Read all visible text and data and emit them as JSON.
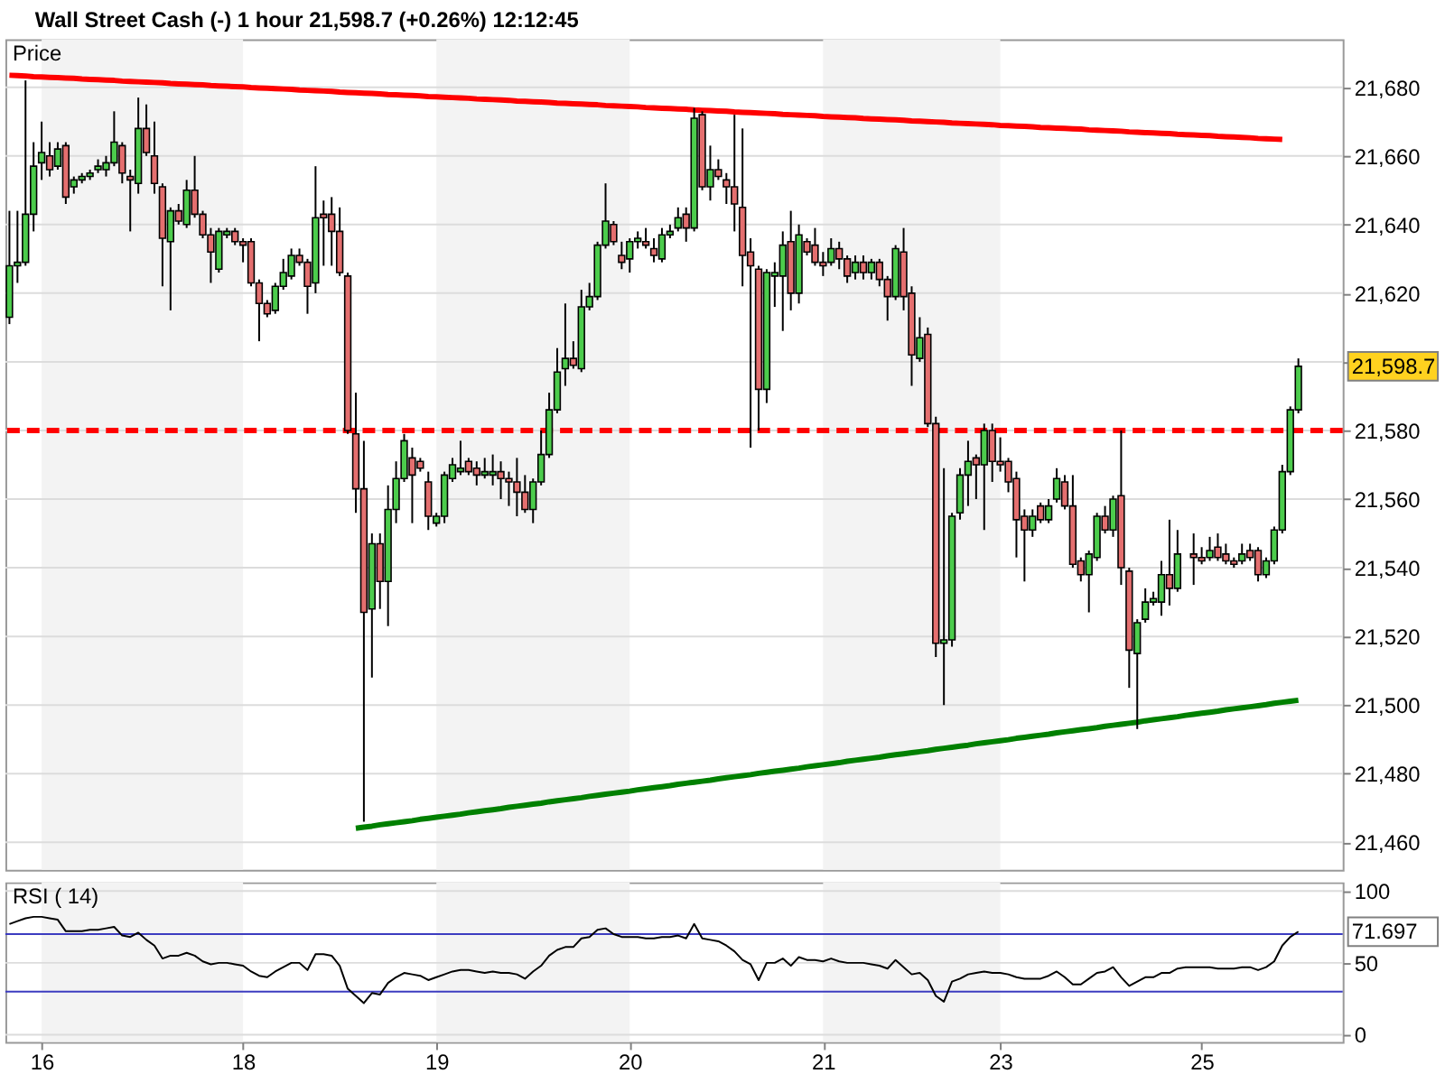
{
  "chart_data": [
    {
      "type": "candlestick",
      "title": "Wall Street Cash (-) 1 hour 21,598.7 (+0.26%) 12:12:45",
      "ylabel": "Price",
      "categories": [
        null,
        null,
        null,
        null,
        "16",
        null,
        null,
        null,
        null,
        null,
        null,
        null,
        null,
        null,
        null,
        null,
        null,
        null,
        null,
        null,
        null,
        null,
        null,
        null,
        null,
        null,
        null,
        null,
        null,
        "18",
        null,
        null,
        null,
        null,
        null,
        null,
        null,
        null,
        null,
        null,
        null,
        null,
        null,
        null,
        null,
        null,
        null,
        null,
        null,
        null,
        null,
        null,
        null,
        "19",
        null,
        null,
        null,
        null,
        null,
        null,
        null,
        null,
        null,
        null,
        null,
        null,
        null,
        null,
        null,
        null,
        null,
        null,
        null,
        null,
        null,
        null,
        null,
        "20",
        null,
        null,
        null,
        null,
        null,
        null,
        null,
        null,
        null,
        null,
        null,
        null,
        null,
        null,
        null,
        null,
        null,
        null,
        null,
        null,
        null,
        null,
        null,
        "21",
        null,
        null,
        null,
        null,
        null,
        null,
        null,
        null,
        null,
        null,
        null,
        null,
        null,
        null,
        null,
        null,
        null,
        null,
        null,
        null,
        null,
        "23",
        null,
        null,
        null,
        null,
        null,
        null,
        null,
        null,
        null,
        null,
        null,
        null,
        null,
        null,
        null,
        null,
        null,
        null,
        null,
        null,
        null,
        null,
        null,
        null,
        "25",
        null,
        null,
        null,
        null,
        null,
        null,
        null,
        null,
        null,
        null,
        null,
        null,
        null,
        null,
        null,
        null,
        null
      ],
      "ohlc": [
        [
          21613,
          21644,
          21611,
          21628
        ],
        [
          21628,
          21644,
          21623,
          21629
        ],
        [
          21629,
          21682,
          21628,
          21643
        ],
        [
          21643,
          21664,
          21638,
          21657
        ],
        [
          21658,
          21670,
          21653,
          21661
        ],
        [
          21660,
          21664,
          21654,
          21656
        ],
        [
          21657,
          21664,
          21656,
          21662
        ],
        [
          21663,
          21664,
          21646,
          21648
        ],
        [
          21651,
          21654,
          21649,
          21653
        ],
        [
          21653,
          21655,
          21652,
          21654
        ],
        [
          21654,
          21656,
          21653,
          21655
        ],
        [
          21656,
          21659,
          21655,
          21657
        ],
        [
          21656,
          21660,
          21654,
          21658
        ],
        [
          21658,
          21673,
          21657,
          21664
        ],
        [
          21663,
          21664,
          21652,
          21655
        ],
        [
          21654,
          21656,
          21638,
          21653
        ],
        [
          21652,
          21677,
          21649,
          21668
        ],
        [
          21668,
          21675,
          21660,
          21661
        ],
        [
          21660,
          21670,
          21649,
          21652
        ],
        [
          21651,
          21652,
          21622,
          21636
        ],
        [
          21635,
          21645,
          21615,
          21644
        ],
        [
          21644,
          21646,
          21640,
          21641
        ],
        [
          21640,
          21653,
          21639,
          21650
        ],
        [
          21650,
          21660,
          21642,
          21643
        ],
        [
          21643,
          21644,
          21636,
          21637
        ],
        [
          21637,
          21639,
          21623,
          21632
        ],
        [
          21627,
          21639,
          21626,
          21638
        ],
        [
          21637,
          21639,
          21636,
          21638
        ],
        [
          21638,
          21639,
          21634,
          21635
        ],
        [
          21635,
          21636,
          21629,
          21634
        ],
        [
          21635,
          21636,
          21622,
          21623
        ],
        [
          21623,
          21624,
          21606,
          21617
        ],
        [
          21617,
          21618,
          21613,
          21614
        ],
        [
          21615,
          21623,
          21614,
          21622
        ],
        [
          21622,
          21630,
          21621,
          21626
        ],
        [
          21625,
          21633,
          21624,
          21631
        ],
        [
          21631,
          21633,
          21628,
          21629
        ],
        [
          21629,
          21630,
          21614,
          21622
        ],
        [
          21623,
          21657,
          21620,
          21642
        ],
        [
          21643,
          21647,
          21628,
          21642
        ],
        [
          21643,
          21648,
          21628,
          21638
        ],
        [
          21638,
          21645,
          21625,
          21626
        ],
        [
          21625,
          21626,
          21579,
          21580
        ],
        [
          21579,
          21591,
          21556,
          21563
        ],
        [
          21563,
          21577,
          21466,
          21527
        ],
        [
          21528,
          21550,
          21508,
          21547
        ],
        [
          21547,
          21550,
          21528,
          21536
        ],
        [
          21536,
          21564,
          21523,
          21557
        ],
        [
          21557,
          21571,
          21553,
          21566
        ],
        [
          21566,
          21579,
          21565,
          21577
        ],
        [
          21572,
          21575,
          21553,
          21567
        ],
        [
          21571,
          21572,
          21568,
          21569
        ],
        [
          21565,
          21568,
          21551,
          21555
        ],
        [
          21553,
          21556,
          21552,
          21555
        ],
        [
          21555,
          21568,
          21553,
          21567
        ],
        [
          21566,
          21572,
          21565,
          21570
        ],
        [
          21568,
          21577,
          21567,
          21569
        ],
        [
          21571,
          21572,
          21567,
          21568
        ],
        [
          21569,
          21571,
          21564,
          21567
        ],
        [
          21567,
          21572,
          21566,
          21568
        ],
        [
          21567,
          21573,
          21564,
          21568
        ],
        [
          21568,
          21571,
          21560,
          21566
        ],
        [
          21566,
          21568,
          21558,
          21565
        ],
        [
          21565,
          21572,
          21555,
          21562
        ],
        [
          21562,
          21567,
          21556,
          21557
        ],
        [
          21557,
          21566,
          21553,
          21565
        ],
        [
          21565,
          21580,
          21564,
          21573
        ],
        [
          21573,
          21591,
          21572,
          21586
        ],
        [
          21586,
          21604,
          21585,
          21597
        ],
        [
          21598,
          21617,
          21593,
          21601
        ],
        [
          21601,
          21606,
          21598,
          21599
        ],
        [
          21598,
          21621,
          21597,
          21616
        ],
        [
          21616,
          21623,
          21615,
          21619
        ],
        [
          21619,
          21635,
          21618,
          21634
        ],
        [
          21634,
          21652,
          21633,
          21641
        ],
        [
          21640,
          21641,
          21634,
          21635
        ],
        [
          21631,
          21635,
          21627,
          21629
        ],
        [
          21630,
          21636,
          21626,
          21635
        ],
        [
          21635,
          21638,
          21633,
          21636
        ],
        [
          21635,
          21639,
          21633,
          21634
        ],
        [
          21633,
          21636,
          21629,
          21631
        ],
        [
          21630,
          21639,
          21629,
          21637
        ],
        [
          21637,
          21640,
          21636,
          21638
        ],
        [
          21639,
          21645,
          21638,
          21642
        ],
        [
          21643,
          21645,
          21635,
          21639
        ],
        [
          21639,
          21674,
          21638,
          21671
        ],
        [
          21672,
          21673,
          21650,
          21651
        ],
        [
          21651,
          21663,
          21647,
          21656
        ],
        [
          21656,
          21659,
          21653,
          21654
        ],
        [
          21653,
          21655,
          21646,
          21651
        ],
        [
          21651,
          21672,
          21638,
          21646
        ],
        [
          21645,
          21668,
          21622,
          21631
        ],
        [
          21632,
          21636,
          21575,
          21628
        ],
        [
          21627,
          21628,
          21580,
          21592
        ],
        [
          21592,
          21627,
          21588,
          21626
        ],
        [
          21625,
          21629,
          21616,
          21626
        ],
        [
          21625,
          21638,
          21609,
          21634
        ],
        [
          21635,
          21644,
          21615,
          21620
        ],
        [
          21620,
          21640,
          21617,
          21637
        ],
        [
          21635,
          21636,
          21631,
          21632
        ],
        [
          21634,
          21639,
          21628,
          21629
        ],
        [
          21629,
          21632,
          21625,
          21628
        ],
        [
          21629,
          21636,
          21628,
          21633
        ],
        [
          21633,
          21635,
          21627,
          21630
        ],
        [
          21630,
          21631,
          21623,
          21625
        ],
        [
          21626,
          21631,
          21624,
          21629
        ],
        [
          21629,
          21631,
          21624,
          21626
        ],
        [
          21626,
          21630,
          21624,
          21629
        ],
        [
          21629,
          21630,
          21622,
          21624
        ],
        [
          21624,
          21625,
          21612,
          21619
        ],
        [
          21619,
          21634,
          21618,
          21633
        ],
        [
          21632,
          21639,
          21615,
          21619
        ],
        [
          21620,
          21622,
          21593,
          21602
        ],
        [
          21601,
          21613,
          21600,
          21607
        ],
        [
          21608,
          21610,
          21581,
          21582
        ],
        [
          21582,
          21584,
          21514,
          21518
        ],
        [
          21518,
          21569,
          21500,
          21519
        ],
        [
          21519,
          21556,
          21517,
          21555
        ],
        [
          21556,
          21569,
          21554,
          21567
        ],
        [
          21567,
          21577,
          21558,
          21571
        ],
        [
          21572,
          21573,
          21560,
          21570
        ],
        [
          21570,
          21582,
          21551,
          21580
        ],
        [
          21580,
          21582,
          21565,
          21571
        ],
        [
          21571,
          21578,
          21568,
          21570
        ],
        [
          21571,
          21572,
          21562,
          21565
        ],
        [
          21566,
          21568,
          21543,
          21554
        ],
        [
          21555,
          21557,
          21536,
          21551
        ],
        [
          21551,
          21557,
          21549,
          21555
        ],
        [
          21558,
          21559,
          21553,
          21554
        ],
        [
          21554,
          21560,
          21553,
          21558
        ],
        [
          21560,
          21569,
          21559,
          21566
        ],
        [
          21565,
          21567,
          21557,
          21558
        ],
        [
          21558,
          21567,
          21540,
          21541
        ],
        [
          21542,
          21543,
          21536,
          21538
        ],
        [
          21538,
          21545,
          21527,
          21544
        ],
        [
          21543,
          21556,
          21542,
          21555
        ],
        [
          21555,
          21558,
          21550,
          21551
        ],
        [
          21551,
          21561,
          21549,
          21560
        ],
        [
          21561,
          21580,
          21535,
          21540
        ],
        [
          21539,
          21540,
          21505,
          21516
        ],
        [
          21515,
          21525,
          21493,
          21524
        ],
        [
          21525,
          21534,
          21524,
          21530
        ],
        [
          21530,
          21533,
          21529,
          21531
        ],
        [
          21530,
          21542,
          21526,
          21538
        ],
        [
          21538,
          21554,
          21529,
          21534
        ],
        [
          21534,
          21551,
          21533,
          21544
        ],
        null,
        [
          21544,
          21550,
          21535,
          21543
        ],
        [
          21543,
          21546,
          21541,
          21542
        ],
        [
          21543,
          21549,
          21542,
          21545
        ],
        [
          21546,
          21550,
          21542,
          21543
        ],
        [
          21544,
          21547,
          21541,
          21542
        ],
        [
          21542,
          21543,
          21540,
          21541
        ],
        [
          21542,
          21547,
          21541,
          21544
        ],
        [
          21545,
          21547,
          21542,
          21543
        ],
        [
          21545,
          21546,
          21536,
          21538
        ],
        [
          21538,
          21543,
          21537,
          21542
        ],
        [
          21542,
          21552,
          21541,
          21551
        ],
        [
          21551,
          21570,
          21550,
          21568
        ],
        [
          21568,
          21587,
          21567,
          21586
        ],
        [
          21586,
          21601,
          21585,
          21598.7
        ],
        null,
        null,
        null,
        null,
        null
      ],
      "colors": [
        "#4ccc4c",
        "#4ccc4c",
        "#4ccc4c",
        "#4ccc4c",
        "#4ccc4c",
        "#e46f6f",
        "#4ccc4c",
        "#e46f6f",
        "#4ccc4c",
        "#4ccc4c",
        "#4ccc4c",
        "#4ccc4c",
        "#4ccc4c",
        "#4ccc4c",
        "#e46f6f",
        "#e46f6f",
        "#4ccc4c",
        "#e46f6f",
        "#e46f6f",
        "#e46f6f",
        "#4ccc4c",
        "#e46f6f",
        "#4ccc4c",
        "#e46f6f",
        "#e46f6f",
        "#e46f6f",
        "#4ccc4c",
        "#4ccc4c",
        "#e46f6f",
        "#e46f6f",
        "#e46f6f",
        "#e46f6f",
        "#e46f6f",
        "#4ccc4c",
        "#4ccc4c",
        "#4ccc4c",
        "#e46f6f",
        "#e46f6f",
        "#4ccc4c",
        "#e46f6f",
        "#e46f6f",
        "#e46f6f",
        "#e46f6f",
        "#e46f6f",
        "#e46f6f",
        "#4ccc4c",
        "#e46f6f",
        "#4ccc4c",
        "#4ccc4c",
        "#4ccc4c",
        "#e46f6f",
        "#e46f6f",
        "#e46f6f",
        "#4ccc4c",
        "#4ccc4c",
        "#4ccc4c",
        "#4ccc4c",
        "#e46f6f",
        "#e46f6f",
        "#4ccc4c",
        "#4ccc4c",
        "#e46f6f",
        "#e46f6f",
        "#e46f6f",
        "#e46f6f",
        "#4ccc4c",
        "#4ccc4c",
        "#4ccc4c",
        "#4ccc4c",
        "#4ccc4c",
        "#e46f6f",
        "#4ccc4c",
        "#4ccc4c",
        "#4ccc4c",
        "#4ccc4c",
        "#e46f6f",
        "#e46f6f",
        "#4ccc4c",
        "#4ccc4c",
        "#e46f6f",
        "#e46f6f",
        "#4ccc4c",
        "#4ccc4c",
        "#4ccc4c",
        "#e46f6f",
        "#4ccc4c",
        "#e46f6f",
        "#4ccc4c",
        "#e46f6f",
        "#e46f6f",
        "#e46f6f",
        "#e46f6f",
        "#e46f6f",
        "#e46f6f",
        "#4ccc4c",
        "#4ccc4c",
        "#4ccc4c",
        "#e46f6f",
        "#4ccc4c",
        "#e46f6f",
        "#e46f6f",
        "#e46f6f",
        "#4ccc4c",
        "#e46f6f",
        "#e46f6f",
        "#4ccc4c",
        "#e46f6f",
        "#4ccc4c",
        "#e46f6f",
        "#e46f6f",
        "#4ccc4c",
        "#e46f6f",
        "#e46f6f",
        "#4ccc4c",
        "#e46f6f",
        "#e46f6f",
        "#4ccc4c",
        "#4ccc4c",
        "#4ccc4c",
        "#4ccc4c",
        "#e46f6f",
        "#4ccc4c",
        "#e46f6f",
        "#e46f6f",
        "#e46f6f",
        "#e46f6f",
        "#e46f6f",
        "#4ccc4c",
        "#e46f6f",
        "#4ccc4c",
        "#4ccc4c",
        "#e46f6f",
        "#e46f6f",
        "#e46f6f",
        "#4ccc4c",
        "#4ccc4c",
        "#e46f6f",
        "#4ccc4c",
        "#e46f6f",
        "#e46f6f",
        "#4ccc4c",
        "#4ccc4c",
        "#4ccc4c",
        "#4ccc4c",
        "#e46f6f",
        "#4ccc4c",
        null,
        "#e46f6f",
        "#e46f6f",
        "#4ccc4c",
        "#e46f6f",
        "#e46f6f",
        "#e46f6f",
        "#4ccc4c",
        "#e46f6f",
        "#e46f6f",
        "#4ccc4c",
        "#4ccc4c",
        "#4ccc4c",
        "#4ccc4c",
        "#4ccc4c",
        null,
        null,
        null,
        null,
        null
      ],
      "series": [
        {
          "type": "line",
          "color": "#ff0000",
          "values": [
            21683.5,
            21683.4,
            21683.3,
            21683.1,
            21683.0,
            21682.9,
            21682.8,
            21682.7,
            21682.6,
            21682.4,
            21682.3,
            21682.2,
            21682.1,
            21682.0,
            21681.8,
            21681.7,
            21681.6,
            21681.5,
            21681.4,
            21681.3,
            21681.1,
            21681.0,
            21680.9,
            21680.8,
            21680.7,
            21680.5,
            21680.4,
            21680.3,
            21680.2,
            21680.1,
            21679.9,
            21679.8,
            21679.7,
            21679.6,
            21679.5,
            21679.4,
            21679.2,
            21679.1,
            21679.0,
            21678.9,
            21678.8,
            21678.6,
            21678.5,
            21678.4,
            21678.3,
            21678.2,
            21678.1,
            21677.9,
            21677.8,
            21677.7,
            21677.6,
            21677.5,
            21677.3,
            21677.2,
            21677.1,
            21677.0,
            21676.9,
            21676.8,
            21676.6,
            21676.5,
            21676.4,
            21676.3,
            21676.2,
            21676.0,
            21675.9,
            21675.8,
            21675.7,
            21675.6,
            21675.4,
            21675.3,
            21675.2,
            21675.1,
            21675.0,
            21674.9,
            21674.7,
            21674.6,
            21674.5,
            21674.4,
            21674.3,
            21674.1,
            21674.0,
            21673.9,
            21673.8,
            21673.7,
            21673.6,
            21673.4,
            21673.3,
            21673.2,
            21673.1,
            21673.0,
            21672.8,
            21672.7,
            21672.6,
            21672.5,
            21672.4,
            21672.3,
            21672.1,
            21672.0,
            21671.9,
            21671.8,
            21671.7,
            21671.5,
            21671.4,
            21671.3,
            21671.2,
            21671.1,
            21670.9,
            21670.8,
            21670.7,
            21670.6,
            21670.5,
            21670.4,
            21670.2,
            21670.1,
            21670.0,
            21669.9,
            21669.8,
            21669.6,
            21669.5,
            21669.4,
            21669.3,
            21669.2,
            21669.1,
            21668.9,
            21668.8,
            21668.7,
            21668.6,
            21668.5,
            21668.3,
            21668.2,
            21668.1,
            21668.0,
            21667.9,
            21667.8,
            21667.6,
            21667.5,
            21667.4,
            21667.3,
            21667.2,
            21667.0,
            21666.9,
            21666.8,
            21666.7,
            21666.6,
            21666.5,
            21666.3,
            21666.2,
            21666.1,
            21666.0,
            21665.9,
            21665.7,
            21665.6,
            21665.5,
            21665.4,
            21665.3,
            21665.1,
            21665.0,
            21664.9,
            21664.8,
            null,
            null,
            null,
            null,
            null,
            null,
            null
          ]
        },
        {
          "type": "line",
          "color": "#008000",
          "values": [
            null,
            null,
            null,
            null,
            null,
            null,
            null,
            null,
            null,
            null,
            null,
            null,
            null,
            null,
            null,
            null,
            null,
            null,
            null,
            null,
            null,
            null,
            null,
            null,
            null,
            null,
            null,
            null,
            null,
            null,
            null,
            null,
            null,
            null,
            null,
            null,
            null,
            null,
            null,
            null,
            null,
            null,
            null,
            21464.1,
            21464.4,
            21464.7,
            21465.1,
            21465.4,
            21465.7,
            21466.0,
            21466.3,
            21466.7,
            21467.0,
            21467.3,
            21467.6,
            21467.9,
            21468.2,
            21468.6,
            21468.9,
            21469.2,
            21469.5,
            21469.8,
            21470.2,
            21470.5,
            21470.8,
            21471.1,
            21471.4,
            21471.8,
            21472.1,
            21472.4,
            21472.7,
            21473.0,
            21473.4,
            21473.7,
            21474.0,
            21474.3,
            21474.6,
            21474.9,
            21475.3,
            21475.6,
            21475.9,
            21476.2,
            21476.5,
            21476.9,
            21477.2,
            21477.5,
            21477.8,
            21478.1,
            21478.5,
            21478.8,
            21479.1,
            21479.4,
            21479.7,
            21480.1,
            21480.4,
            21480.7,
            21481.0,
            21481.3,
            21481.6,
            21482.0,
            21482.3,
            21482.6,
            21482.9,
            21483.2,
            21483.6,
            21483.9,
            21484.2,
            21484.5,
            21484.8,
            21485.2,
            21485.5,
            21485.8,
            21486.1,
            21486.4,
            21486.7,
            21487.1,
            21487.4,
            21487.7,
            21488.0,
            21488.3,
            21488.7,
            21489.0,
            21489.3,
            21489.6,
            21489.9,
            21490.3,
            21490.6,
            21490.9,
            21491.2,
            21491.5,
            21491.9,
            21492.2,
            21492.5,
            21492.8,
            21493.1,
            21493.4,
            21493.8,
            21494.1,
            21494.4,
            21494.7,
            21495.0,
            21495.4,
            21495.7,
            21496.0,
            21496.3,
            21496.6,
            21497.0,
            21497.3,
            21497.6,
            21497.9,
            21498.2,
            21498.6,
            21498.9,
            21499.2,
            21499.5,
            21499.8,
            21500.1,
            21500.5,
            21500.8,
            21501.1,
            21501.4,
            null,
            null,
            null,
            null,
            null
          ]
        }
      ],
      "ref_lines": [
        {
          "axis": "y",
          "value": 21580,
          "color": "#ff0000",
          "line_style": "dashed"
        }
      ],
      "bands": [
        {
          "axis": "x",
          "from": "16",
          "to": "18",
          "color": "#f3f3f3"
        },
        {
          "axis": "x",
          "from": "19",
          "to": "20",
          "color": "#f3f3f3"
        },
        {
          "axis": "x",
          "from": "21",
          "to": "23",
          "color": "#f3f3f3"
        }
      ],
      "annotations": [
        "21,598.7"
      ],
      "ylim": [
        21452,
        21694
      ],
      "yticks": [
        {
          "value": 21460,
          "label": "21,460"
        },
        {
          "value": 21480,
          "label": "21,480"
        },
        {
          "value": 21500,
          "label": "21,500"
        },
        {
          "value": 21520,
          "label": "21,520"
        },
        {
          "value": 21540,
          "label": "21,540"
        },
        {
          "value": 21560,
          "label": "21,560"
        },
        {
          "value": 21580,
          "label": "21,580"
        },
        {
          "value": 21600,
          "label": null
        },
        {
          "value": 21620,
          "label": "21,620"
        },
        {
          "value": 21640,
          "label": "21,640"
        },
        {
          "value": 21660,
          "label": "21,660"
        },
        {
          "value": 21680,
          "label": "21,680"
        }
      ],
      "tick_labels": "y",
      "grid": "y"
    },
    {
      "type": "line",
      "ylabel": "RSI ( 14)",
      "categories": [
        null,
        null,
        null,
        null,
        "16",
        null,
        null,
        null,
        null,
        null,
        null,
        null,
        null,
        null,
        null,
        null,
        null,
        null,
        null,
        null,
        null,
        null,
        null,
        null,
        null,
        null,
        null,
        null,
        null,
        "18",
        null,
        null,
        null,
        null,
        null,
        null,
        null,
        null,
        null,
        null,
        null,
        null,
        null,
        null,
        null,
        null,
        null,
        null,
        null,
        null,
        null,
        null,
        null,
        "19",
        null,
        null,
        null,
        null,
        null,
        null,
        null,
        null,
        null,
        null,
        null,
        null,
        null,
        null,
        null,
        null,
        null,
        null,
        null,
        null,
        null,
        null,
        null,
        "20",
        null,
        null,
        null,
        null,
        null,
        null,
        null,
        null,
        null,
        null,
        null,
        null,
        null,
        null,
        null,
        null,
        null,
        null,
        null,
        null,
        null,
        null,
        null,
        "21",
        null,
        null,
        null,
        null,
        null,
        null,
        null,
        null,
        null,
        null,
        null,
        null,
        null,
        null,
        null,
        null,
        null,
        null,
        null,
        null,
        null,
        "23",
        null,
        null,
        null,
        null,
        null,
        null,
        null,
        null,
        null,
        null,
        null,
        null,
        null,
        null,
        null,
        null,
        null,
        null,
        null,
        null,
        null,
        null,
        null,
        null,
        "25",
        null,
        null,
        null,
        null,
        null,
        null,
        null,
        null,
        null,
        null,
        null,
        null,
        null,
        null,
        null,
        null,
        null
      ],
      "series": [
        {
          "color": "#000000",
          "values": [
            77,
            79,
            81,
            82,
            82,
            81,
            80,
            72,
            72,
            72,
            73,
            73,
            74,
            75,
            69,
            68,
            71,
            66,
            62,
            53,
            55,
            55,
            57,
            55,
            51,
            49,
            50,
            50,
            49,
            48,
            44,
            41,
            40,
            44,
            47,
            50,
            50,
            45,
            56,
            56,
            55,
            48,
            32,
            27,
            22,
            29,
            28,
            36,
            40,
            43,
            42,
            41,
            38,
            40,
            42,
            44,
            45,
            45,
            44,
            43,
            44,
            43,
            43,
            42,
            39,
            44,
            48,
            55,
            59,
            61,
            61,
            67,
            68,
            73,
            74,
            70,
            68,
            68,
            68,
            67,
            67,
            68,
            68,
            69,
            67,
            77,
            67,
            66,
            65,
            62,
            58,
            52,
            49,
            38,
            50,
            50,
            53,
            48,
            54,
            52,
            52,
            51,
            53,
            51,
            50,
            50,
            50,
            49,
            48,
            46,
            52,
            47,
            42,
            43,
            38,
            27,
            23,
            37,
            39,
            42,
            43,
            44,
            43,
            43,
            42,
            40,
            39,
            39,
            39,
            41,
            44,
            40,
            35,
            35,
            39,
            43,
            44,
            47,
            40,
            34,
            37,
            40,
            40,
            43,
            43,
            46,
            47,
            47,
            47,
            47,
            46,
            46,
            46,
            47,
            47,
            45,
            47,
            51,
            62,
            68,
            71.697,
            null,
            null,
            null,
            null,
            null
          ]
        }
      ],
      "ref_lines": [
        {
          "axis": "y",
          "value": 70,
          "color": "#3c3cc0"
        },
        {
          "axis": "y",
          "value": 30,
          "color": "#3c3cc0"
        }
      ],
      "bands": [
        {
          "axis": "x",
          "from": "16",
          "to": "18",
          "color": "#f3f3f3"
        },
        {
          "axis": "x",
          "from": "19",
          "to": "20",
          "color": "#f3f3f3"
        },
        {
          "axis": "x",
          "from": "21",
          "to": "23",
          "color": "#f3f3f3"
        }
      ],
      "annotations": [
        "71.697"
      ],
      "ylim": [
        -5,
        106
      ],
      "yticks": [
        0,
        50,
        100
      ],
      "grid": "y"
    }
  ]
}
